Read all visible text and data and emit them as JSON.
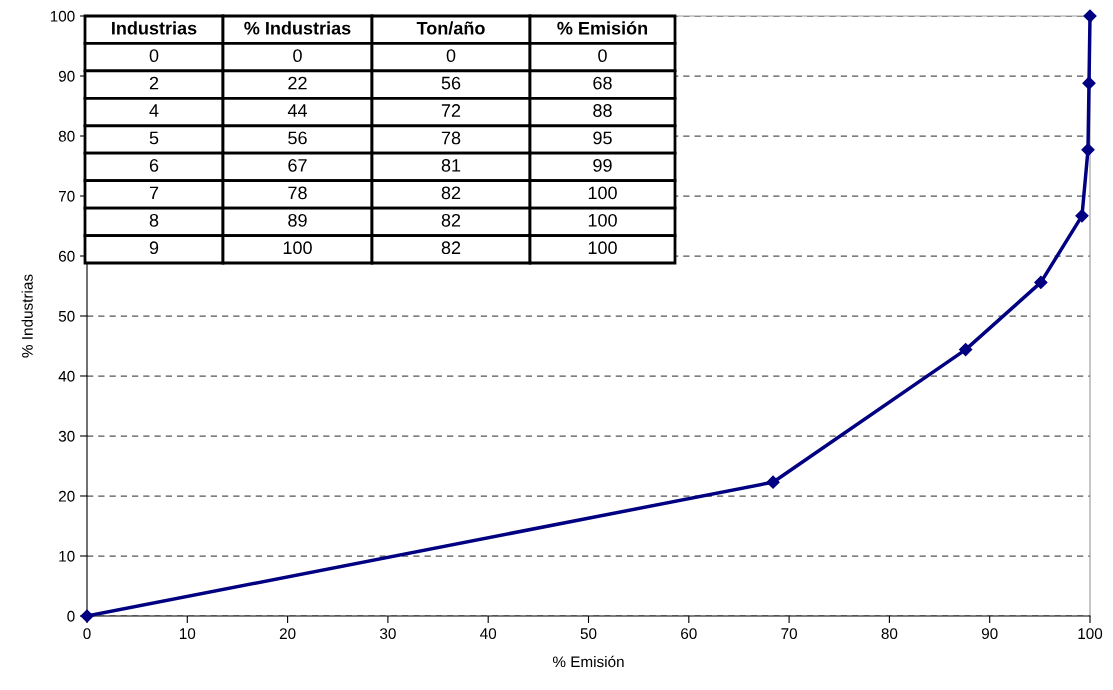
{
  "chart_data": {
    "type": "line",
    "xlabel": "% Emisión",
    "ylabel": "% Industrias",
    "series": [
      {
        "color": "#000080",
        "x": [
          0,
          68.4,
          87.6,
          95.1,
          99.2,
          99.8,
          99.9,
          100
        ],
        "values": [
          0,
          22.3,
          44.4,
          55.6,
          66.7,
          77.7,
          88.8,
          100
        ]
      }
    ],
    "xlim": [
      0,
      100
    ],
    "ylim": [
      0,
      100
    ],
    "xticks": [
      0,
      10,
      20,
      30,
      40,
      50,
      60,
      70,
      80,
      90,
      100
    ],
    "yticks": [
      0,
      10,
      20,
      30,
      40,
      50,
      60,
      70,
      80,
      90,
      100
    ],
    "grid": "y",
    "marker": "diamond",
    "line_style": "solid",
    "annotations": [
      "Industrias",
      "% Industrias",
      "Ton/año",
      "% Emisión",
      "0",
      "0",
      "0",
      "0",
      "2",
      "22",
      "56",
      "68",
      "4",
      "44",
      "72",
      "88",
      "5",
      "56",
      "78",
      "95",
      "6",
      "67",
      "81",
      "99",
      "7",
      "78",
      "82",
      "100",
      "8",
      "89",
      "82",
      "100",
      "9",
      "100",
      "82",
      "100"
    ]
  }
}
